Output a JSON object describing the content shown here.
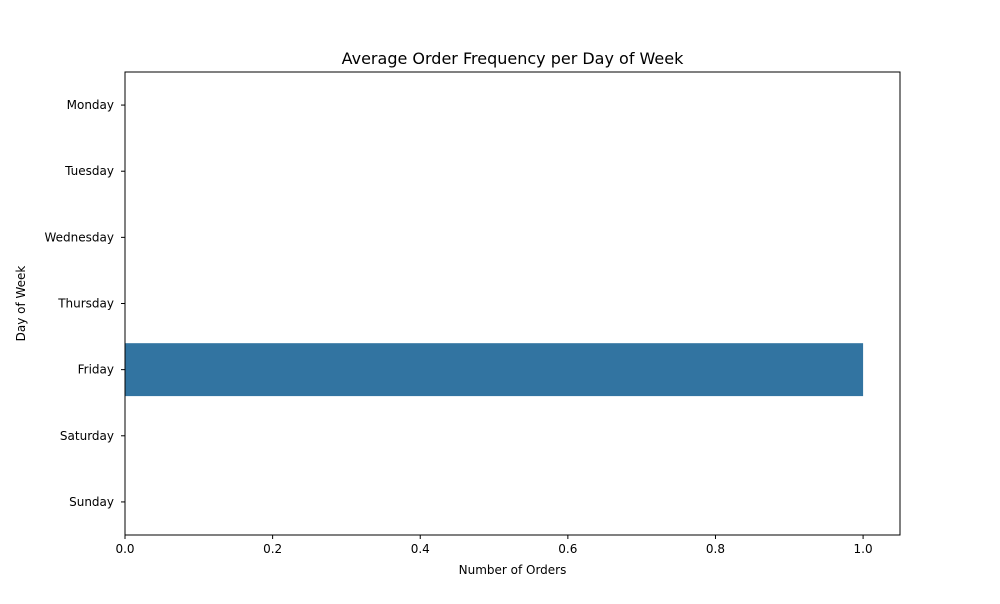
{
  "chart_data": {
    "type": "bar",
    "orientation": "horizontal",
    "title": "Average Order Frequency per Day of Week",
    "xlabel": "Number of Orders",
    "ylabel": "Day of Week",
    "categories": [
      "Monday",
      "Tuesday",
      "Wednesday",
      "Thursday",
      "Friday",
      "Saturday",
      "Sunday"
    ],
    "values": [
      0,
      0,
      0,
      0,
      1.0,
      0,
      0
    ],
    "xlim": [
      0,
      1.05
    ],
    "xticks": [
      0.0,
      0.2,
      0.4,
      0.6,
      0.8,
      1.0
    ],
    "xtick_labels": [
      "0.0",
      "0.2",
      "0.4",
      "0.6",
      "0.8",
      "1.0"
    ],
    "grid": false,
    "bar_color": "#3274a1"
  }
}
